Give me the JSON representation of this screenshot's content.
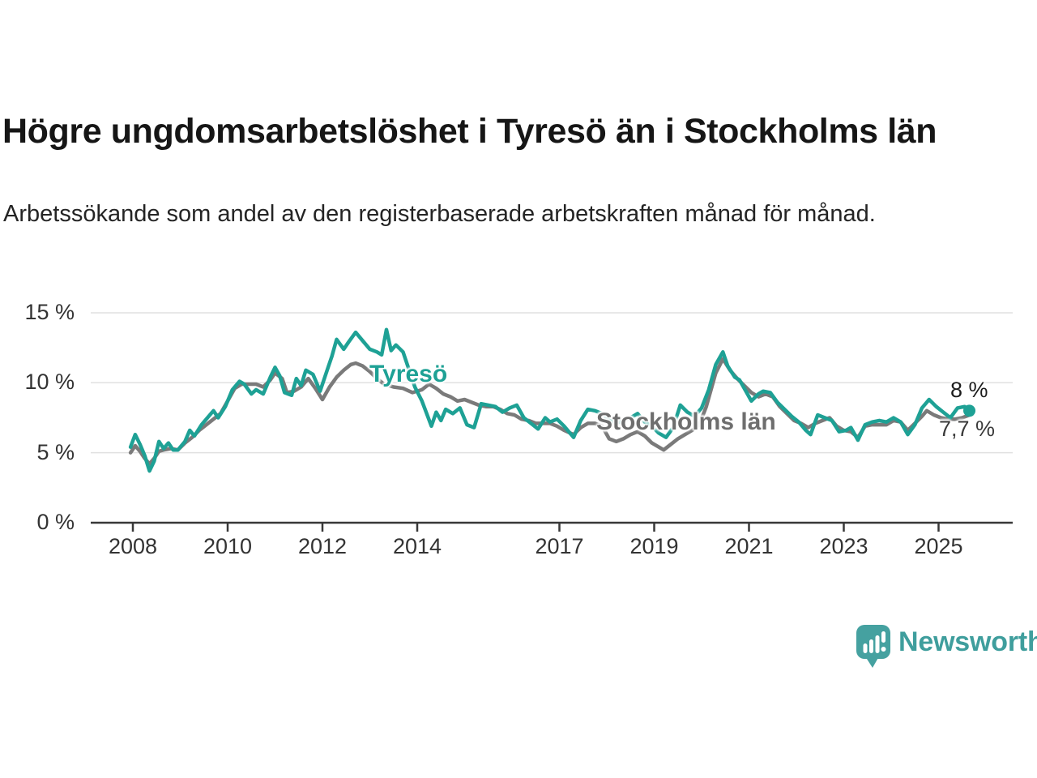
{
  "header": {
    "title": "Högre ungdomsarbetslöshet i Tyresö än i Stockholms län",
    "subtitle": "Arbetssökande som andel av den registerbaserade arbetskraften månad för månad."
  },
  "chart_data": {
    "type": "line",
    "x_axis": {
      "tick_years": [
        2008,
        2010,
        2012,
        2014,
        2017,
        2019,
        2021,
        2023,
        2025
      ],
      "tick_labels": [
        "2008",
        "2010",
        "2012",
        "2014",
        "2017",
        "2019",
        "2021",
        "2023",
        "2025"
      ],
      "range": [
        2007.9,
        2026.1
      ]
    },
    "y_axis": {
      "ticks": [
        0,
        5,
        10,
        15
      ],
      "tick_labels": [
        "0 %",
        "5 %",
        "10 %",
        "15 %"
      ],
      "range": [
        0,
        15.5
      ],
      "grid": true
    },
    "colors": {
      "grid": "#e0e0e0",
      "axis": "#383838",
      "tick_text": "#333333"
    },
    "series": [
      {
        "name": "Stockholms län",
        "color": "#7a7a7a",
        "label_color": "#6e6e6e",
        "end_label": "7,7 %",
        "end_value": 7.7,
        "end_dot": false,
        "points": [
          [
            2007.95,
            5.0
          ],
          [
            2008.05,
            5.5
          ],
          [
            2008.15,
            5.1
          ],
          [
            2008.25,
            4.6
          ],
          [
            2008.35,
            4.2
          ],
          [
            2008.45,
            4.6
          ],
          [
            2008.55,
            5.1
          ],
          [
            2008.65,
            5.2
          ],
          [
            2008.8,
            5.3
          ],
          [
            2008.95,
            5.2
          ],
          [
            2009.1,
            5.7
          ],
          [
            2009.25,
            6.1
          ],
          [
            2009.4,
            6.6
          ],
          [
            2009.55,
            7.0
          ],
          [
            2009.7,
            7.4
          ],
          [
            2009.85,
            7.8
          ],
          [
            2010.0,
            8.7
          ],
          [
            2010.15,
            9.6
          ],
          [
            2010.3,
            9.9
          ],
          [
            2010.45,
            9.9
          ],
          [
            2010.6,
            9.9
          ],
          [
            2010.75,
            9.7
          ],
          [
            2010.9,
            10.2
          ],
          [
            2011.0,
            10.7
          ],
          [
            2011.15,
            10.3
          ],
          [
            2011.25,
            9.3
          ],
          [
            2011.4,
            9.4
          ],
          [
            2011.55,
            9.7
          ],
          [
            2011.7,
            10.3
          ],
          [
            2011.85,
            9.6
          ],
          [
            2012.0,
            8.8
          ],
          [
            2012.15,
            9.7
          ],
          [
            2012.3,
            10.4
          ],
          [
            2012.45,
            10.9
          ],
          [
            2012.6,
            11.3
          ],
          [
            2012.7,
            11.4
          ],
          [
            2012.85,
            11.2
          ],
          [
            2013.0,
            10.8
          ],
          [
            2013.15,
            10.3
          ],
          [
            2013.3,
            9.9
          ],
          [
            2013.5,
            9.7
          ],
          [
            2013.7,
            9.6
          ],
          [
            2013.9,
            9.3
          ],
          [
            2014.1,
            9.5
          ],
          [
            2014.25,
            9.9
          ],
          [
            2014.4,
            9.6
          ],
          [
            2014.55,
            9.2
          ],
          [
            2014.7,
            9.0
          ],
          [
            2014.85,
            8.7
          ],
          [
            2015.0,
            8.8
          ],
          [
            2015.15,
            8.6
          ],
          [
            2015.3,
            8.4
          ],
          [
            2015.45,
            8.3
          ],
          [
            2015.6,
            8.3
          ],
          [
            2015.75,
            8.1
          ],
          [
            2015.9,
            7.8
          ],
          [
            2016.05,
            7.7
          ],
          [
            2016.2,
            7.4
          ],
          [
            2016.35,
            7.3
          ],
          [
            2016.5,
            7.1
          ],
          [
            2016.65,
            7.1
          ],
          [
            2016.8,
            7.1
          ],
          [
            2016.95,
            6.9
          ],
          [
            2017.1,
            6.6
          ],
          [
            2017.3,
            6.3
          ],
          [
            2017.45,
            6.8
          ],
          [
            2017.6,
            7.1
          ],
          [
            2017.75,
            7.1
          ],
          [
            2017.9,
            6.9
          ],
          [
            2018.05,
            6.0
          ],
          [
            2018.2,
            5.8
          ],
          [
            2018.35,
            6.0
          ],
          [
            2018.5,
            6.3
          ],
          [
            2018.65,
            6.5
          ],
          [
            2018.8,
            6.2
          ],
          [
            2018.95,
            5.7
          ],
          [
            2019.1,
            5.4
          ],
          [
            2019.2,
            5.2
          ],
          [
            2019.35,
            5.6
          ],
          [
            2019.5,
            6.0
          ],
          [
            2019.65,
            6.3
          ],
          [
            2019.8,
            6.6
          ],
          [
            2019.95,
            7.0
          ],
          [
            2020.1,
            8.3
          ],
          [
            2020.3,
            10.7
          ],
          [
            2020.45,
            11.7
          ],
          [
            2020.6,
            10.9
          ],
          [
            2020.75,
            10.3
          ],
          [
            2020.9,
            9.8
          ],
          [
            2021.05,
            9.3
          ],
          [
            2021.2,
            9.0
          ],
          [
            2021.35,
            9.2
          ],
          [
            2021.5,
            9.0
          ],
          [
            2021.65,
            8.3
          ],
          [
            2021.8,
            7.8
          ],
          [
            2021.95,
            7.3
          ],
          [
            2022.1,
            7.1
          ],
          [
            2022.25,
            6.8
          ],
          [
            2022.4,
            7.1
          ],
          [
            2022.55,
            7.3
          ],
          [
            2022.7,
            7.5
          ],
          [
            2022.85,
            6.9
          ],
          [
            2023.0,
            6.6
          ],
          [
            2023.15,
            6.5
          ],
          [
            2023.3,
            6.1
          ],
          [
            2023.45,
            6.9
          ],
          [
            2023.6,
            7.0
          ],
          [
            2023.75,
            7.0
          ],
          [
            2023.9,
            7.0
          ],
          [
            2024.05,
            7.3
          ],
          [
            2024.2,
            7.2
          ],
          [
            2024.35,
            6.6
          ],
          [
            2024.5,
            7.1
          ],
          [
            2024.65,
            7.6
          ],
          [
            2024.75,
            8.0
          ],
          [
            2024.9,
            7.7
          ],
          [
            2025.05,
            7.5
          ],
          [
            2025.2,
            7.4
          ],
          [
            2025.35,
            7.4
          ],
          [
            2025.5,
            7.5
          ],
          [
            2025.65,
            7.7
          ]
        ]
      },
      {
        "name": "Tyresö",
        "color": "#1ea195",
        "label_color": "#1ea195",
        "end_label": "8 %",
        "end_value": 8.0,
        "end_dot": true,
        "points": [
          [
            2007.95,
            5.4
          ],
          [
            2008.05,
            6.3
          ],
          [
            2008.15,
            5.6
          ],
          [
            2008.25,
            4.8
          ],
          [
            2008.35,
            3.7
          ],
          [
            2008.45,
            4.4
          ],
          [
            2008.55,
            5.8
          ],
          [
            2008.65,
            5.3
          ],
          [
            2008.75,
            5.7
          ],
          [
            2008.85,
            5.2
          ],
          [
            2008.95,
            5.2
          ],
          [
            2009.1,
            5.8
          ],
          [
            2009.2,
            6.6
          ],
          [
            2009.3,
            6.2
          ],
          [
            2009.45,
            7.0
          ],
          [
            2009.6,
            7.6
          ],
          [
            2009.7,
            8.0
          ],
          [
            2009.8,
            7.5
          ],
          [
            2009.95,
            8.3
          ],
          [
            2010.1,
            9.5
          ],
          [
            2010.25,
            10.1
          ],
          [
            2010.35,
            9.9
          ],
          [
            2010.5,
            9.2
          ],
          [
            2010.6,
            9.5
          ],
          [
            2010.75,
            9.2
          ],
          [
            2010.9,
            10.4
          ],
          [
            2011.0,
            11.1
          ],
          [
            2011.1,
            10.5
          ],
          [
            2011.2,
            9.3
          ],
          [
            2011.35,
            9.1
          ],
          [
            2011.45,
            10.3
          ],
          [
            2011.55,
            9.8
          ],
          [
            2011.65,
            10.9
          ],
          [
            2011.8,
            10.6
          ],
          [
            2011.95,
            9.4
          ],
          [
            2012.1,
            10.9
          ],
          [
            2012.2,
            11.9
          ],
          [
            2012.3,
            13.1
          ],
          [
            2012.45,
            12.4
          ],
          [
            2012.55,
            12.9
          ],
          [
            2012.7,
            13.6
          ],
          [
            2012.85,
            13.0
          ],
          [
            2013.0,
            12.4
          ],
          [
            2013.15,
            12.2
          ],
          [
            2013.25,
            12.0
          ],
          [
            2013.35,
            13.8
          ],
          [
            2013.45,
            12.3
          ],
          [
            2013.55,
            12.7
          ],
          [
            2013.7,
            12.2
          ],
          [
            2013.85,
            10.7
          ],
          [
            2013.95,
            9.7
          ],
          [
            2014.1,
            8.7
          ],
          [
            2014.3,
            6.9
          ],
          [
            2014.4,
            7.9
          ],
          [
            2014.5,
            7.3
          ],
          [
            2014.6,
            8.1
          ],
          [
            2014.75,
            7.8
          ],
          [
            2014.9,
            8.2
          ],
          [
            2015.05,
            7.0
          ],
          [
            2015.2,
            6.8
          ],
          [
            2015.35,
            8.5
          ],
          [
            2015.5,
            8.4
          ],
          [
            2015.65,
            8.3
          ],
          [
            2015.8,
            7.9
          ],
          [
            2015.95,
            8.2
          ],
          [
            2016.1,
            8.4
          ],
          [
            2016.25,
            7.5
          ],
          [
            2016.4,
            7.1
          ],
          [
            2016.55,
            6.7
          ],
          [
            2016.7,
            7.5
          ],
          [
            2016.8,
            7.2
          ],
          [
            2016.95,
            7.4
          ],
          [
            2017.1,
            6.9
          ],
          [
            2017.3,
            6.1
          ],
          [
            2017.45,
            7.3
          ],
          [
            2017.6,
            8.1
          ],
          [
            2017.75,
            8.0
          ],
          [
            2017.9,
            7.8
          ],
          [
            2018.05,
            7.3
          ],
          [
            2018.2,
            7.1
          ],
          [
            2018.35,
            7.3
          ],
          [
            2018.5,
            7.5
          ],
          [
            2018.65,
            7.8
          ],
          [
            2018.8,
            7.2
          ],
          [
            2018.95,
            6.9
          ],
          [
            2019.1,
            6.4
          ],
          [
            2019.25,
            6.1
          ],
          [
            2019.4,
            6.8
          ],
          [
            2019.55,
            8.4
          ],
          [
            2019.7,
            7.9
          ],
          [
            2019.85,
            7.6
          ],
          [
            2020.0,
            8.2
          ],
          [
            2020.15,
            9.5
          ],
          [
            2020.3,
            11.3
          ],
          [
            2020.45,
            12.2
          ],
          [
            2020.55,
            11.2
          ],
          [
            2020.7,
            10.4
          ],
          [
            2020.8,
            10.2
          ],
          [
            2020.95,
            9.3
          ],
          [
            2021.05,
            8.7
          ],
          [
            2021.2,
            9.2
          ],
          [
            2021.3,
            9.4
          ],
          [
            2021.45,
            9.3
          ],
          [
            2021.6,
            8.6
          ],
          [
            2021.75,
            8.1
          ],
          [
            2021.9,
            7.6
          ],
          [
            2022.05,
            7.2
          ],
          [
            2022.2,
            6.6
          ],
          [
            2022.3,
            6.3
          ],
          [
            2022.45,
            7.7
          ],
          [
            2022.6,
            7.5
          ],
          [
            2022.75,
            7.3
          ],
          [
            2022.9,
            6.5
          ],
          [
            2023.05,
            6.6
          ],
          [
            2023.15,
            6.8
          ],
          [
            2023.3,
            5.9
          ],
          [
            2023.45,
            7.0
          ],
          [
            2023.6,
            7.2
          ],
          [
            2023.75,
            7.3
          ],
          [
            2023.9,
            7.2
          ],
          [
            2024.05,
            7.5
          ],
          [
            2024.2,
            7.2
          ],
          [
            2024.35,
            6.3
          ],
          [
            2024.5,
            7.0
          ],
          [
            2024.65,
            8.2
          ],
          [
            2024.8,
            8.8
          ],
          [
            2024.95,
            8.3
          ],
          [
            2025.1,
            7.9
          ],
          [
            2025.25,
            7.5
          ],
          [
            2025.4,
            8.2
          ],
          [
            2025.55,
            8.3
          ],
          [
            2025.65,
            8.0
          ]
        ]
      }
    ]
  },
  "branding": {
    "logo_text": "Newsworthy",
    "logo_color": "#3f9e9d",
    "icon": "newsworthy-speech-bubble-bar-chart-icon"
  }
}
